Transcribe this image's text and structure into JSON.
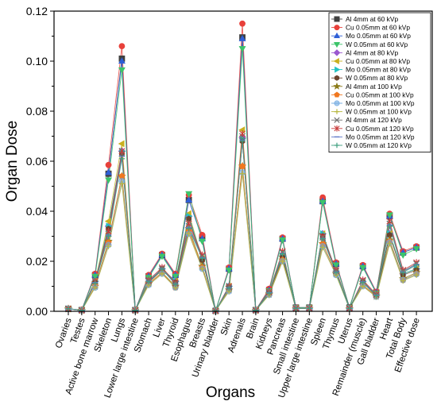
{
  "chart_data": {
    "type": "line",
    "title": "",
    "xlabel": "Organs",
    "ylabel": "Organ Dose",
    "ylim": [
      0,
      0.12
    ],
    "yticks": [
      "0.00",
      "0.02",
      "0.04",
      "0.06",
      "0.08",
      "0.10",
      "0.12"
    ],
    "legend_position": "top-right",
    "grid": false,
    "categories": [
      "Ovaries",
      "Testes",
      "Active bone marrow",
      "Skeleton",
      "Lungs",
      "Lower large intestine",
      "Stomach",
      "Liver",
      "Thyroid",
      "Esophagus",
      "Breasts",
      "Urinary bladder",
      "Skin",
      "Adrenals",
      "Brain",
      "Kidneys",
      "Pancreas",
      "Small intestine",
      "Upper large intestine",
      "Spleen",
      "Thymus",
      "Uterus",
      "Remainder (muscle)",
      "Gall bladder",
      "Heart",
      "Total Body",
      "Effective dose"
    ],
    "series": [
      {
        "name": "Al 4mm at 60 kVp",
        "color": "#404040",
        "marker": "square",
        "values": [
          0.001,
          0.0005,
          0.0145,
          0.055,
          0.101,
          0.0005,
          0.014,
          0.0225,
          0.0145,
          0.0445,
          0.0295,
          0.0002,
          0.017,
          0.1095,
          0.0005,
          0.0085,
          0.029,
          0.0015,
          0.0015,
          0.044,
          0.019,
          0.0015,
          0.018,
          0.0075,
          0.038,
          0.0235,
          0.0255
        ]
      },
      {
        "name": "Cu 0.05mm at 60 kVp",
        "color": "#e8403a",
        "marker": "circle",
        "values": [
          0.001,
          0.0005,
          0.015,
          0.0585,
          0.106,
          0.0005,
          0.0145,
          0.023,
          0.015,
          0.0465,
          0.0305,
          0.0002,
          0.0175,
          0.115,
          0.0005,
          0.009,
          0.0295,
          0.0015,
          0.0015,
          0.0455,
          0.0195,
          0.0015,
          0.0185,
          0.0078,
          0.039,
          0.024,
          0.026
        ]
      },
      {
        "name": "Mo 0.05mm at 60 kVp",
        "color": "#2f5fd6",
        "marker": "triangle-up",
        "values": [
          0.001,
          0.0005,
          0.0145,
          0.0555,
          0.1,
          0.0005,
          0.014,
          0.0225,
          0.0145,
          0.0445,
          0.029,
          0.0002,
          0.017,
          0.109,
          0.0005,
          0.0085,
          0.029,
          0.0015,
          0.0015,
          0.044,
          0.019,
          0.0015,
          0.018,
          0.0075,
          0.038,
          0.0235,
          0.0255
        ]
      },
      {
        "name": "W 0.05mm at 60 kVp",
        "color": "#3cc46a",
        "marker": "triangle-down",
        "values": [
          0.001,
          0.0005,
          0.014,
          0.0525,
          0.0965,
          0.0005,
          0.0135,
          0.022,
          0.014,
          0.047,
          0.028,
          0.0002,
          0.0165,
          0.105,
          0.0005,
          0.0082,
          0.0285,
          0.0015,
          0.0015,
          0.0435,
          0.0185,
          0.0015,
          0.0175,
          0.0072,
          0.0385,
          0.0225,
          0.025
        ]
      },
      {
        "name": "Al 4mm at 80 kVp",
        "color": "#9b59d0",
        "marker": "diamond",
        "values": [
          0.001,
          0.0004,
          0.012,
          0.034,
          0.064,
          0.0004,
          0.012,
          0.017,
          0.012,
          0.038,
          0.021,
          0.0002,
          0.01,
          0.0695,
          0.0004,
          0.0075,
          0.022,
          0.0012,
          0.0012,
          0.031,
          0.016,
          0.0012,
          0.012,
          0.0065,
          0.031,
          0.015,
          0.017
        ]
      },
      {
        "name": "Cu 0.05mm at 80 kVp",
        "color": "#c9b020",
        "marker": "triangle-left",
        "values": [
          0.001,
          0.0004,
          0.012,
          0.036,
          0.067,
          0.0004,
          0.012,
          0.017,
          0.012,
          0.039,
          0.021,
          0.0002,
          0.01,
          0.0725,
          0.0004,
          0.0075,
          0.022,
          0.0012,
          0.0012,
          0.031,
          0.016,
          0.0012,
          0.012,
          0.0065,
          0.031,
          0.015,
          0.017
        ]
      },
      {
        "name": "Mo 0.05mm at 80 kVp",
        "color": "#22c2c2",
        "marker": "triangle-right",
        "values": [
          0.001,
          0.0004,
          0.012,
          0.034,
          0.064,
          0.0004,
          0.012,
          0.017,
          0.012,
          0.038,
          0.021,
          0.0002,
          0.01,
          0.069,
          0.0004,
          0.0075,
          0.022,
          0.0012,
          0.0012,
          0.031,
          0.016,
          0.0012,
          0.012,
          0.0065,
          0.031,
          0.015,
          0.017
        ]
      },
      {
        "name": "W 0.05mm at 80 kVp",
        "color": "#6b4530",
        "marker": "hexagon",
        "values": [
          0.001,
          0.0004,
          0.0115,
          0.033,
          0.063,
          0.0004,
          0.0115,
          0.0165,
          0.0115,
          0.037,
          0.0205,
          0.0002,
          0.0095,
          0.068,
          0.0004,
          0.0072,
          0.0215,
          0.0012,
          0.0012,
          0.03,
          0.0155,
          0.0012,
          0.0115,
          0.0062,
          0.0305,
          0.0145,
          0.0165
        ]
      },
      {
        "name": "Al 4mm at 100 kVp",
        "color": "#8a7a18",
        "marker": "star",
        "values": [
          0.001,
          0.0004,
          0.01,
          0.028,
          0.054,
          0.0004,
          0.011,
          0.0155,
          0.01,
          0.033,
          0.018,
          0.0002,
          0.0085,
          0.058,
          0.0004,
          0.0068,
          0.0205,
          0.0011,
          0.0011,
          0.027,
          0.015,
          0.0011,
          0.0105,
          0.006,
          0.0285,
          0.013,
          0.0155
        ]
      },
      {
        "name": "Cu 0.05mm at 100 kVp",
        "color": "#f07820",
        "marker": "pentagon",
        "values": [
          0.001,
          0.0004,
          0.01,
          0.0275,
          0.054,
          0.0004,
          0.011,
          0.0155,
          0.0095,
          0.032,
          0.0175,
          0.0002,
          0.0085,
          0.058,
          0.0004,
          0.0068,
          0.0205,
          0.0011,
          0.0011,
          0.027,
          0.015,
          0.0011,
          0.0105,
          0.006,
          0.028,
          0.0125,
          0.015
        ]
      },
      {
        "name": "Mo 0.05mm at 100 kVp",
        "color": "#6ea8e0",
        "marker": "circle-half",
        "values": [
          0.001,
          0.0004,
          0.0095,
          0.0265,
          0.052,
          0.0004,
          0.0105,
          0.015,
          0.0095,
          0.031,
          0.017,
          0.0002,
          0.008,
          0.0555,
          0.0004,
          0.0065,
          0.02,
          0.0011,
          0.0011,
          0.026,
          0.0145,
          0.0011,
          0.01,
          0.0058,
          0.0275,
          0.0125,
          0.0148
        ]
      },
      {
        "name": "W 0.05mm at 100 kVp",
        "color": "#b8b840",
        "marker": "plus",
        "values": [
          0.001,
          0.0004,
          0.0095,
          0.026,
          0.051,
          0.0004,
          0.0105,
          0.015,
          0.0095,
          0.031,
          0.017,
          0.0002,
          0.008,
          0.055,
          0.0004,
          0.0065,
          0.02,
          0.0011,
          0.0011,
          0.0255,
          0.0145,
          0.0011,
          0.01,
          0.0058,
          0.027,
          0.0122,
          0.0145
        ]
      },
      {
        "name": "Al 4mm at 120 kVp",
        "color": "#707070",
        "marker": "cross",
        "values": [
          0.001,
          0.0004,
          0.012,
          0.031,
          0.063,
          0.0004,
          0.012,
          0.017,
          0.011,
          0.034,
          0.022,
          0.0002,
          0.0095,
          0.07,
          0.0004,
          0.0075,
          0.0235,
          0.0012,
          0.0012,
          0.0295,
          0.016,
          0.0012,
          0.012,
          0.0065,
          0.035,
          0.016,
          0.019
        ]
      },
      {
        "name": "Cu 0.05mm at 120 kVp",
        "color": "#c83c3c",
        "marker": "asterisk",
        "values": [
          0.001,
          0.0004,
          0.012,
          0.032,
          0.064,
          0.0004,
          0.0125,
          0.0175,
          0.0115,
          0.035,
          0.0225,
          0.0002,
          0.01,
          0.071,
          0.0004,
          0.0078,
          0.024,
          0.0012,
          0.0012,
          0.03,
          0.0165,
          0.0012,
          0.0125,
          0.0068,
          0.036,
          0.0165,
          0.0195
        ]
      },
      {
        "name": "Mo 0.05mm at 120 kVp",
        "color": "#6078c8",
        "marker": "dash",
        "values": [
          0.001,
          0.0004,
          0.0115,
          0.0305,
          0.062,
          0.0004,
          0.012,
          0.017,
          0.011,
          0.0335,
          0.0215,
          0.0002,
          0.0095,
          0.0685,
          0.0004,
          0.0074,
          0.0232,
          0.0012,
          0.0012,
          0.0292,
          0.0158,
          0.0012,
          0.0118,
          0.0064,
          0.0345,
          0.0158,
          0.0188
        ]
      },
      {
        "name": "W 0.05mm at 120 kVp",
        "color": "#40a080",
        "marker": "plus",
        "values": [
          0.001,
          0.0004,
          0.0112,
          0.03,
          0.061,
          0.0004,
          0.0118,
          0.0168,
          0.0108,
          0.033,
          0.0212,
          0.0002,
          0.0092,
          0.068,
          0.0004,
          0.0072,
          0.023,
          0.0012,
          0.0012,
          0.029,
          0.0155,
          0.0012,
          0.0115,
          0.0062,
          0.034,
          0.0155,
          0.0185
        ]
      }
    ]
  }
}
